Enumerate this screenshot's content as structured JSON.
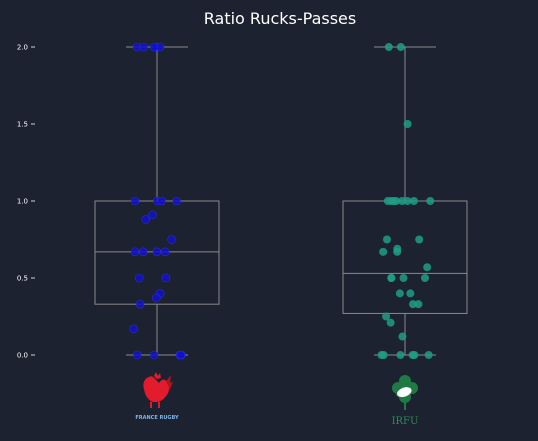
{
  "chart_data": {
    "type": "box",
    "title": "Ratio Rucks-Passes",
    "xlabel": "",
    "ylabel": "",
    "ylim": [
      0,
      2
    ],
    "yticks": [
      0.0,
      0.5,
      1.0,
      1.5,
      2.0
    ],
    "ytick_labels": [
      "0.0",
      "0.5",
      "1.0",
      "1.5",
      "2.0"
    ],
    "grid": false,
    "background": "#1c2230",
    "box_color": "#8a8a8a",
    "groups": [
      {
        "team": "France",
        "logo_text": "FRANCE RUGBY",
        "point_color": "#1010c8",
        "stats": {
          "min": 0.0,
          "q1": 0.33,
          "median": 0.67,
          "q3": 1.0,
          "max": 2.0
        },
        "points": [
          2.0,
          2.0,
          2.0,
          2.0,
          2.0,
          1.0,
          1.0,
          1.0,
          1.0,
          0.91,
          0.88,
          0.75,
          0.67,
          0.67,
          0.67,
          0.67,
          0.5,
          0.5,
          0.4,
          0.37,
          0.33,
          0.17,
          0.0,
          0.0,
          0.0,
          0.0,
          0.0
        ]
      },
      {
        "team": "Ireland",
        "logo_text": "IRFU",
        "point_color": "#1f9e86",
        "stats": {
          "min": 0.0,
          "q1": 0.27,
          "median": 0.53,
          "q3": 1.0,
          "max": 2.0
        },
        "points": [
          2.0,
          2.0,
          1.5,
          1.0,
          1.0,
          1.0,
          1.0,
          1.0,
          1.0,
          1.0,
          1.0,
          0.75,
          0.75,
          0.69,
          0.67,
          0.67,
          0.57,
          0.5,
          0.5,
          0.5,
          0.5,
          0.4,
          0.4,
          0.33,
          0.33,
          0.25,
          0.21,
          0.12,
          0.0,
          0.0,
          0.0,
          0.0,
          0.0,
          0.0
        ]
      }
    ]
  }
}
